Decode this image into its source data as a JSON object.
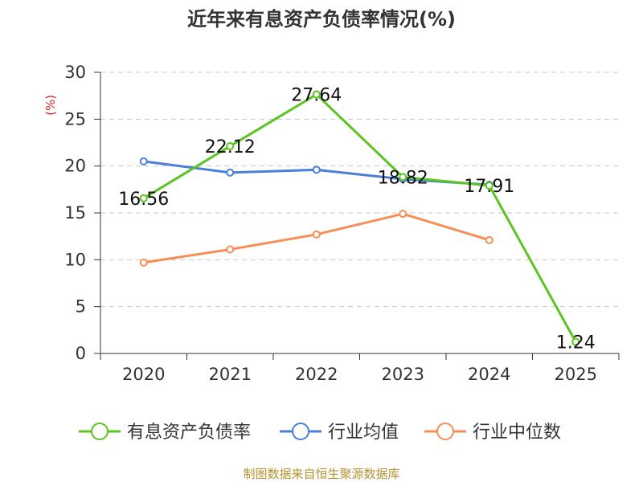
{
  "chart_data": {
    "type": "line",
    "title": "近年来有息资产负债率情况(%)",
    "ylabel": "(%)",
    "xlabel": "",
    "categories": [
      "2020",
      "2021",
      "2022",
      "2023",
      "2024",
      "2025"
    ],
    "ylim": [
      0,
      30
    ],
    "yticks": [
      0,
      5,
      10,
      15,
      20,
      25,
      30
    ],
    "grid": true,
    "legend_position": "bottom",
    "series": [
      {
        "name": "有息资产负债率",
        "color": "#5cc421",
        "values": [
          16.56,
          22.12,
          27.64,
          18.82,
          17.91,
          1.24
        ],
        "labels": [
          "16.56",
          "22.12",
          "27.64",
          "18.82",
          "17.91",
          "1.24"
        ]
      },
      {
        "name": "行业均值",
        "color": "#4b7fdc",
        "values": [
          20.5,
          19.3,
          19.6,
          18.6,
          18.0,
          null
        ],
        "labels": []
      },
      {
        "name": "行业中位数",
        "color": "#f88e55",
        "values": [
          9.7,
          11.1,
          12.7,
          14.9,
          12.1,
          null
        ],
        "labels": []
      }
    ]
  },
  "source": "制图数据来自恒生聚源数据库"
}
